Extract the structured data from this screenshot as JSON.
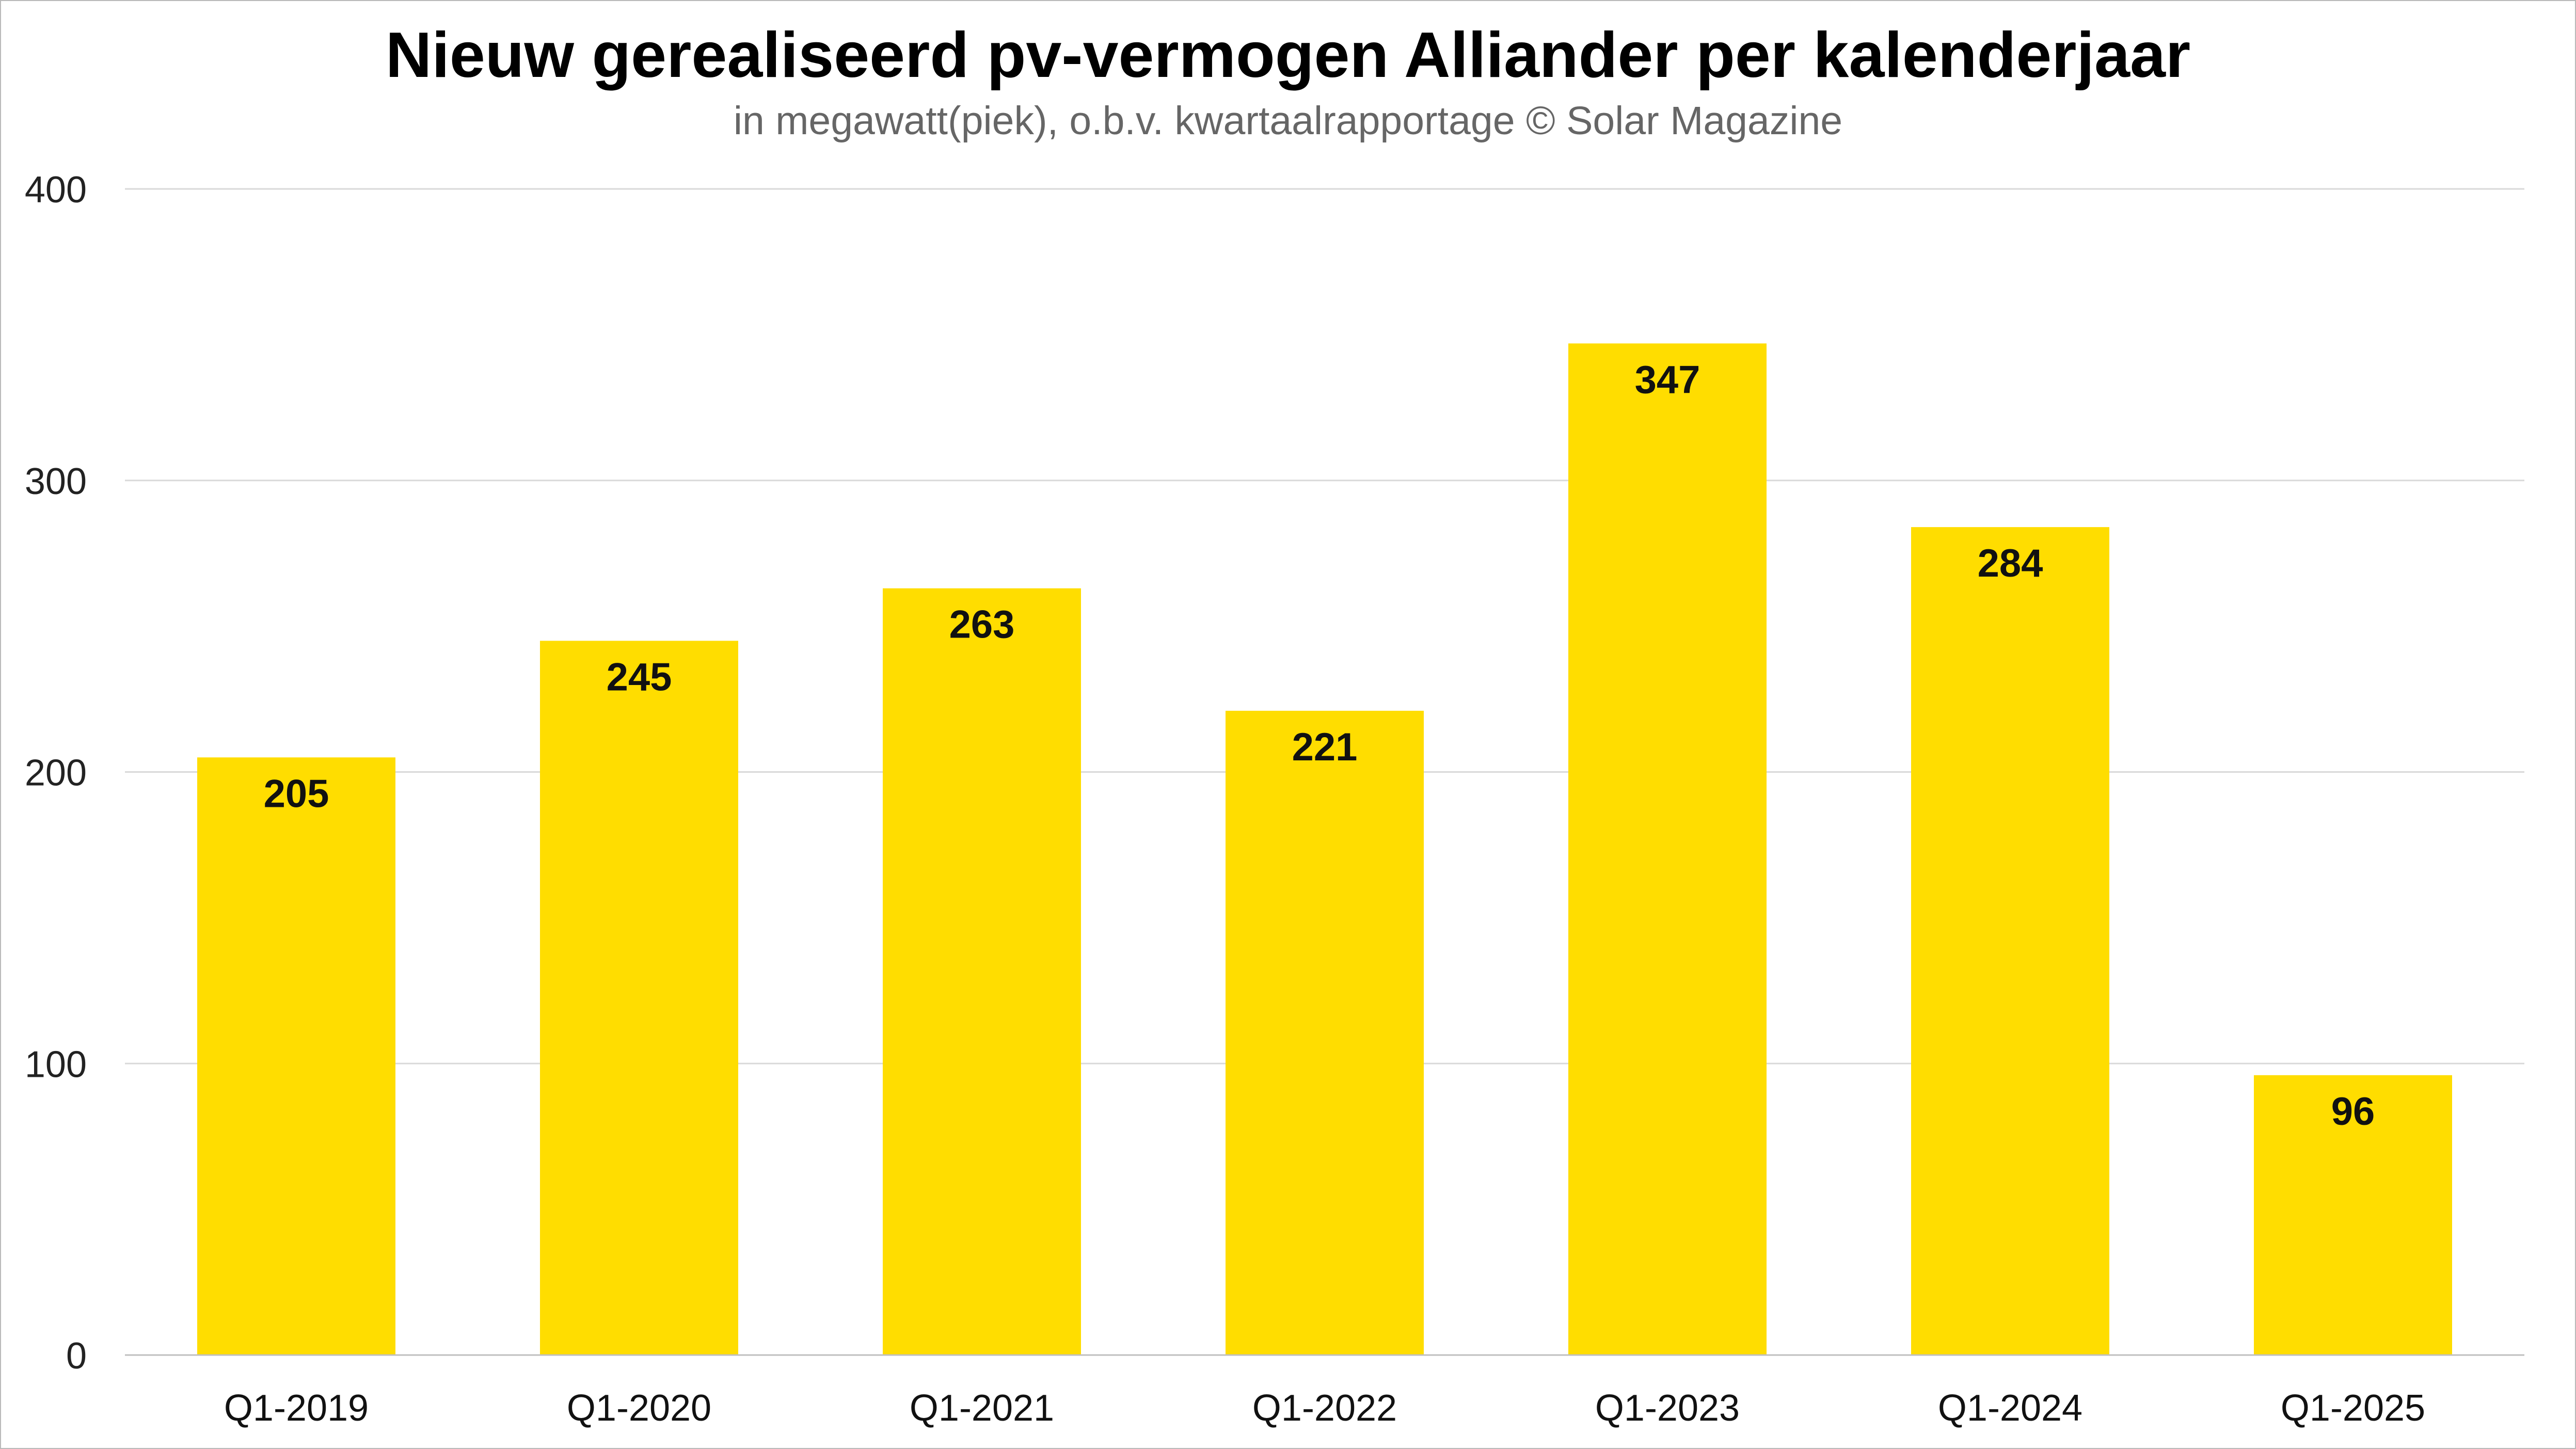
{
  "colors": {
    "bar": "#FFDD00",
    "grid": "#d9d9d9",
    "axis": "#bfbfbf",
    "title": "#000000",
    "subtitle": "#666666"
  },
  "chart_data": {
    "type": "bar",
    "title": "Nieuw gerealiseerd pv-vermogen Alliander per kalenderjaar",
    "subtitle": "in megawatt(piek), o.b.v. kwartaalrapportage © Solar Magazine",
    "xlabel": "",
    "ylabel": "",
    "categories": [
      "Q1-2019",
      "Q1-2020",
      "Q1-2021",
      "Q1-2022",
      "Q1-2023",
      "Q1-2024",
      "Q1-2025"
    ],
    "values": [
      205,
      245,
      263,
      221,
      347,
      284,
      96
    ],
    "data_labels": [
      "205",
      "245",
      "263",
      "221",
      "347",
      "284",
      "96"
    ],
    "ylim": [
      0,
      400
    ],
    "yticks": [
      0,
      100,
      200,
      300,
      400
    ],
    "ytick_labels": [
      "0",
      "100",
      "200",
      "300",
      "400"
    ],
    "grid": true,
    "legend": "none"
  }
}
